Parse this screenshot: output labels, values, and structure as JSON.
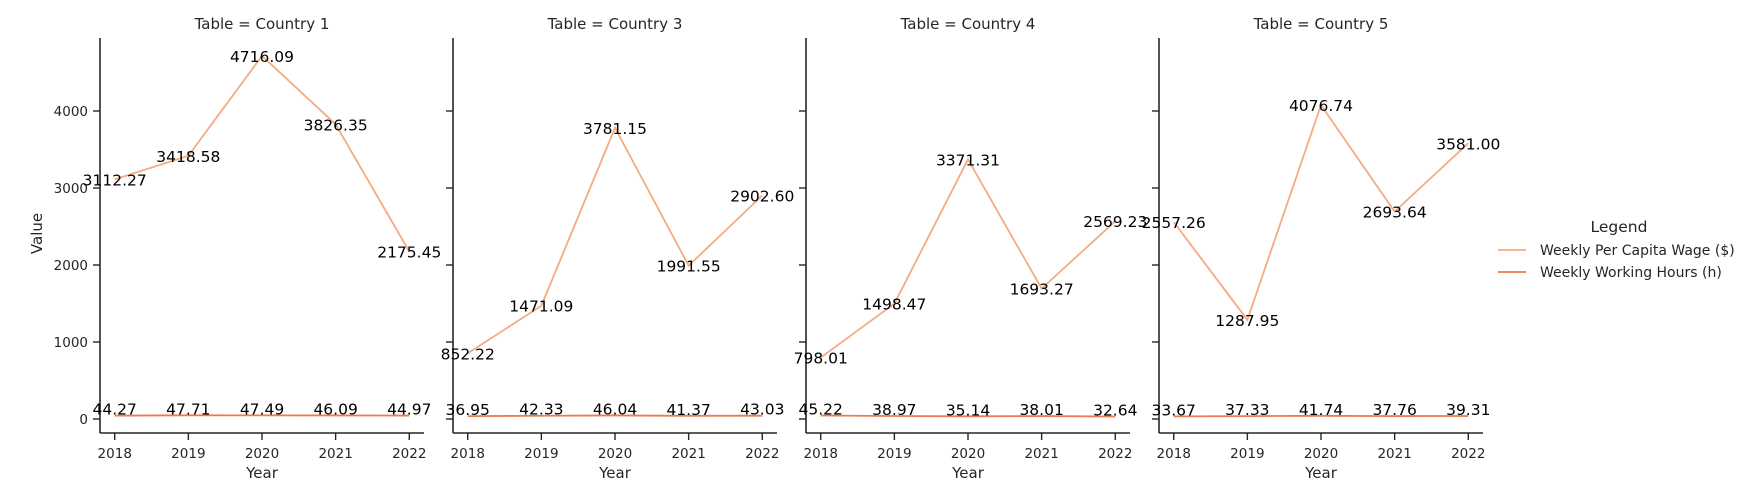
{
  "chart_data": {
    "type": "line",
    "xlabel": "Year",
    "ylabel": "Value",
    "ylim": [
      -200,
      4960
    ],
    "xlim": [
      2017.8,
      2022.2
    ],
    "x": [
      2018,
      2019,
      2020,
      2021,
      2022
    ],
    "yticks": [
      0,
      1000,
      2000,
      3000,
      4000
    ],
    "legend": {
      "title": "Legend",
      "placement": "right",
      "entries": [
        "Weekly Per Capita Wage ($)",
        "Weekly Working Hours (h)"
      ]
    },
    "series_colors": [
      "#f5ab80",
      "#ee7a4f"
    ],
    "panels": [
      {
        "title": "Table = Country 1",
        "series": [
          {
            "name": "Weekly Per Capita Wage ($)",
            "values": [
              3112.27,
              3418.58,
              4716.09,
              3826.35,
              2175.45
            ],
            "labels": [
              "3112.27",
              "3418.58",
              "4716.09",
              "3826.35",
              "2175.45"
            ]
          },
          {
            "name": "Weekly Working Hours (h)",
            "values": [
              44.27,
              47.71,
              47.49,
              46.09,
              44.97
            ],
            "labels": [
              "44.27",
              "47.71",
              "47.49",
              "46.09",
              "44.97"
            ]
          }
        ]
      },
      {
        "title": "Table = Country 3",
        "series": [
          {
            "name": "Weekly Per Capita Wage ($)",
            "values": [
              852.22,
              1471.09,
              3781.15,
              1991.55,
              2902.6
            ],
            "labels": [
              "852.22",
              "1471.09",
              "3781.15",
              "1991.55",
              "2902.60"
            ]
          },
          {
            "name": "Weekly Working Hours (h)",
            "values": [
              36.95,
              42.33,
              46.04,
              41.37,
              43.03
            ],
            "labels": [
              "36.95",
              "42.33",
              "46.04",
              "41.37",
              "43.03"
            ]
          }
        ]
      },
      {
        "title": "Table = Country 4",
        "series": [
          {
            "name": "Weekly Per Capita Wage ($)",
            "values": [
              798.01,
              1498.47,
              3371.31,
              1693.27,
              2569.23
            ],
            "labels": [
              "798.01",
              "1498.47",
              "3371.31",
              "1693.27",
              "2569.23"
            ]
          },
          {
            "name": "Weekly Working Hours (h)",
            "values": [
              45.22,
              38.97,
              35.14,
              38.01,
              32.64
            ],
            "labels": [
              "45.22",
              "38.97",
              "35.14",
              "38.01",
              "32.64"
            ]
          }
        ]
      },
      {
        "title": "Table = Country 5",
        "series": [
          {
            "name": "Weekly Per Capita Wage ($)",
            "values": [
              2557.26,
              1287.95,
              4076.74,
              2693.64,
              3581.0
            ],
            "labels": [
              "2557.26",
              "1287.95",
              "4076.74",
              "2693.64",
              "3581.00"
            ]
          },
          {
            "name": "Weekly Working Hours (h)",
            "values": [
              33.67,
              37.33,
              41.74,
              37.76,
              39.31
            ],
            "labels": [
              "33.67",
              "37.33",
              "41.74",
              "37.76",
              "39.31"
            ]
          }
        ]
      }
    ]
  }
}
